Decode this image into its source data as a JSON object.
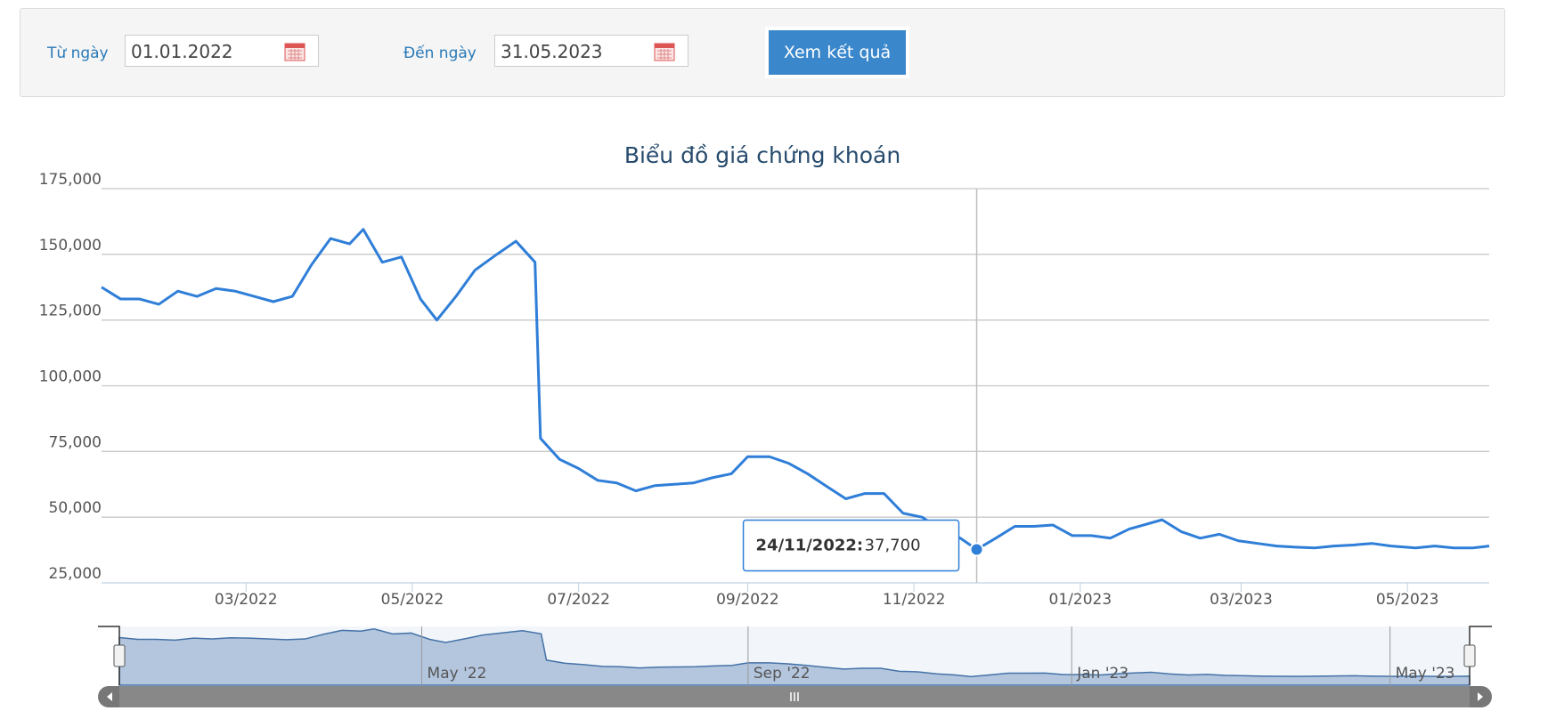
{
  "form": {
    "from_label": "Từ ngày",
    "from_value": "01.01.2022",
    "to_label": "Đến ngày",
    "to_value": "31.05.2023",
    "button": "Xem kết quả"
  },
  "chart_data": {
    "type": "line",
    "title": "Biểu đồ giá chứng khoán",
    "color": "#2f7ed8",
    "grid": true,
    "x": [
      "2022-01-07",
      "2022-01-14",
      "2022-01-21",
      "2022-01-28",
      "2022-02-04",
      "2022-02-11",
      "2022-02-18",
      "2022-02-25",
      "2022-03-04",
      "2022-03-11",
      "2022-03-18",
      "2022-03-25",
      "2022-04-01",
      "2022-04-08",
      "2022-04-13",
      "2022-04-20",
      "2022-04-27",
      "2022-05-04",
      "2022-05-10",
      "2022-05-17",
      "2022-05-24",
      "2022-06-01",
      "2022-06-08",
      "2022-06-15",
      "2022-06-17",
      "2022-06-24",
      "2022-07-01",
      "2022-07-08",
      "2022-07-15",
      "2022-07-22",
      "2022-07-29",
      "2022-08-05",
      "2022-08-12",
      "2022-08-19",
      "2022-08-26",
      "2022-09-01",
      "2022-09-09",
      "2022-09-16",
      "2022-09-23",
      "2022-09-30",
      "2022-10-07",
      "2022-10-14",
      "2022-10-21",
      "2022-10-28",
      "2022-11-04",
      "2022-11-11",
      "2022-11-18",
      "2022-11-24",
      "2022-12-01",
      "2022-12-08",
      "2022-12-15",
      "2022-12-22",
      "2022-12-29",
      "2023-01-05",
      "2023-01-12",
      "2023-01-19",
      "2023-01-31",
      "2023-02-07",
      "2023-02-14",
      "2023-02-21",
      "2023-02-28",
      "2023-03-07",
      "2023-03-14",
      "2023-03-21",
      "2023-03-28",
      "2023-04-04",
      "2023-04-11",
      "2023-04-18",
      "2023-04-25",
      "2023-05-04",
      "2023-05-11",
      "2023-05-18",
      "2023-05-25",
      "2023-05-31"
    ],
    "values": [
      137500,
      133000,
      133000,
      131000,
      136000,
      134000,
      137000,
      136000,
      134000,
      132000,
      134000,
      146000,
      156000,
      154000,
      159500,
      147000,
      149000,
      133000,
      125000,
      134000,
      144000,
      150000,
      155000,
      147000,
      80000,
      72000,
      68500,
      64000,
      63000,
      60000,
      62000,
      62500,
      63000,
      65000,
      66500,
      73000,
      73000,
      70500,
      66500,
      61700,
      57000,
      59000,
      59000,
      51500,
      50000,
      45000,
      42000,
      37700,
      42000,
      46500,
      46500,
      47000,
      43000,
      43000,
      42000,
      45500,
      49000,
      44500,
      42000,
      43500,
      41000,
      40000,
      39000,
      38600,
      38300,
      39000,
      39400,
      40000,
      39000,
      38300,
      39000,
      38300,
      38300,
      39000
    ],
    "xlim": [
      "2022-01-07",
      "2023-05-31"
    ],
    "xticks": [
      {
        "value": "2022-03-01",
        "label": "03/2022"
      },
      {
        "value": "2022-05-01",
        "label": "05/2022"
      },
      {
        "value": "2022-07-01",
        "label": "07/2022"
      },
      {
        "value": "2022-09-01",
        "label": "09/2022"
      },
      {
        "value": "2022-11-01",
        "label": "11/2022"
      },
      {
        "value": "2023-01-01",
        "label": "01/2023"
      },
      {
        "value": "2023-03-01",
        "label": "03/2023"
      },
      {
        "value": "2023-05-01",
        "label": "05/2023"
      }
    ],
    "ylim": [
      25000,
      175000
    ],
    "yticks": [
      {
        "value": 25000,
        "label": "25,000"
      },
      {
        "value": 50000,
        "label": "50,000"
      },
      {
        "value": 75000,
        "label": "75,000"
      },
      {
        "value": 100000,
        "label": "100,000"
      },
      {
        "value": 125000,
        "label": "125,000"
      },
      {
        "value": 150000,
        "label": "150,000"
      },
      {
        "value": 175000,
        "label": "175,000"
      }
    ],
    "tooltip": {
      "x": "2022-11-24",
      "date": "24/11/2022:",
      "value": "37,700"
    },
    "navigator_ticks": [
      {
        "value": "2022-05-01",
        "label": "May '22"
      },
      {
        "value": "2022-09-01",
        "label": "Sep '22"
      },
      {
        "value": "2023-01-01",
        "label": "Jan '23"
      },
      {
        "value": "2023-05-01",
        "label": "May '23"
      }
    ]
  }
}
